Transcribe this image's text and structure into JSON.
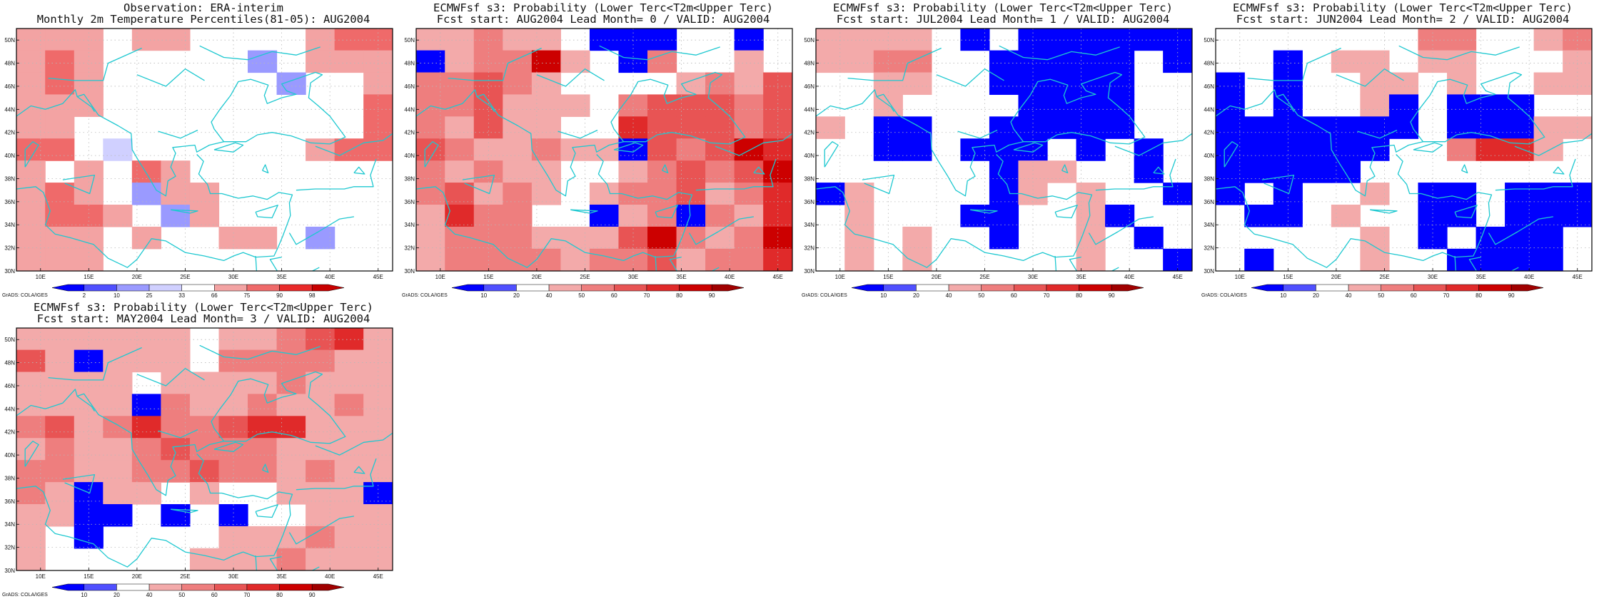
{
  "page": {
    "background": "#ffffff"
  },
  "map_style": {
    "coast_color": "#1ec8d0",
    "grid_color": "#b8b8b8",
    "frame_color": "#000000"
  },
  "palettes": {
    "obs": {
      "labels": [
        "2",
        "10",
        "25",
        "33",
        "66",
        "75",
        "90",
        "98"
      ],
      "colors": [
        "#0000ff",
        "#5050ff",
        "#9a9aff",
        "#d0d0ff",
        "#ffffff",
        "#f3a3a3",
        "#ef6a6a",
        "#e92a2a",
        "#c80000"
      ]
    },
    "prob": {
      "labels": [
        "10",
        "20",
        "40",
        "50",
        "60",
        "70",
        "80",
        "90"
      ],
      "colors": [
        "#0000ff",
        "#5050ff",
        "#ffffff",
        "#f3aaaa",
        "#ee7e7e",
        "#e85454",
        "#e02a2a",
        "#cc0000",
        "#a00000"
      ]
    }
  },
  "chart_data": [
    {
      "type": "heatmap",
      "title_line1": "Observation: ERA-interim",
      "title_line2": "Monthly 2m Temperature Percentiles(81-05): AUG2004",
      "palette": "obs",
      "credit": "GrADS: COLA/IGES",
      "x_ticks": [
        "10E",
        "15E",
        "20E",
        "25E",
        "30E",
        "35E",
        "40E",
        "45E"
      ],
      "y_ticks": [
        "30N",
        "32N",
        "34N",
        "36N",
        "38N",
        "40N",
        "42N",
        "44N",
        "46N",
        "48N",
        "50N"
      ],
      "lon_range": [
        7.5,
        46.5
      ],
      "lat_range": [
        30,
        51
      ],
      "cells": [
        [
          5,
          5,
          5,
          4,
          5,
          5,
          4,
          4,
          4,
          4,
          5,
          6,
          6
        ],
        [
          5,
          6,
          5,
          4,
          4,
          4,
          4,
          4,
          2,
          4,
          5,
          5,
          5
        ],
        [
          5,
          6,
          5,
          4,
          4,
          4,
          4,
          4,
          4,
          2,
          4,
          4,
          5
        ],
        [
          5,
          5,
          5,
          4,
          4,
          4,
          4,
          4,
          4,
          4,
          4,
          4,
          6
        ],
        [
          5,
          5,
          4,
          4,
          4,
          4,
          4,
          4,
          4,
          4,
          4,
          4,
          6
        ],
        [
          6,
          6,
          4,
          3,
          4,
          4,
          4,
          4,
          4,
          4,
          5,
          6,
          6
        ],
        [
          5,
          4,
          5,
          4,
          6,
          5,
          4,
          4,
          4,
          4,
          4,
          4,
          4
        ],
        [
          5,
          6,
          5,
          4,
          2,
          5,
          5,
          4,
          4,
          4,
          4,
          4,
          4
        ],
        [
          5,
          6,
          6,
          5,
          4,
          2,
          5,
          4,
          4,
          4,
          4,
          4,
          4
        ],
        [
          5,
          5,
          5,
          4,
          5,
          4,
          4,
          5,
          5,
          4,
          2,
          4,
          4
        ],
        [
          5,
          5,
          5,
          4,
          4,
          4,
          4,
          4,
          4,
          4,
          4,
          4,
          4
        ]
      ]
    },
    {
      "type": "heatmap",
      "title_line1": "ECMWFsf s3: Probability (Lower Terc<T2m<Upper Terc)",
      "title_line2": "Fcst start: AUG2004  Lead Month= 0 / VALID: AUG2004",
      "palette": "prob",
      "credit": "GrADS: COLA/IGES",
      "x_ticks": [
        "10E",
        "15E",
        "20E",
        "25E",
        "30E",
        "35E",
        "40E",
        "45E"
      ],
      "y_ticks": [
        "30N",
        "32N",
        "34N",
        "36N",
        "38N",
        "40N",
        "42N",
        "44N",
        "46N",
        "48N",
        "50N"
      ],
      "lon_range": [
        7.5,
        46.5
      ],
      "lat_range": [
        30,
        51
      ],
      "cells": [
        [
          3,
          3,
          4,
          3,
          3,
          2,
          0,
          0,
          0,
          2,
          2,
          0,
          2
        ],
        [
          0,
          3,
          4,
          4,
          7,
          3,
          2,
          0,
          4,
          2,
          2,
          3,
          2
        ],
        [
          4,
          4,
          5,
          4,
          3,
          2,
          2,
          2,
          2,
          3,
          4,
          3,
          5
        ],
        [
          4,
          4,
          5,
          3,
          3,
          3,
          2,
          4,
          5,
          5,
          5,
          4,
          5
        ],
        [
          4,
          3,
          5,
          3,
          3,
          2,
          2,
          6,
          5,
          5,
          5,
          4,
          5
        ],
        [
          5,
          4,
          3,
          3,
          4,
          3,
          3,
          0,
          5,
          4,
          5,
          7,
          6
        ],
        [
          4,
          3,
          4,
          3,
          3,
          2,
          2,
          3,
          4,
          5,
          4,
          5,
          7
        ],
        [
          4,
          5,
          3,
          4,
          3,
          2,
          3,
          4,
          4,
          5,
          3,
          4,
          6
        ],
        [
          3,
          6,
          4,
          4,
          2,
          2,
          0,
          3,
          4,
          0,
          4,
          3,
          6
        ],
        [
          3,
          4,
          4,
          4,
          3,
          3,
          3,
          5,
          7,
          4,
          3,
          4,
          7
        ],
        [
          3,
          4,
          4,
          4,
          4,
          3,
          4,
          4,
          5,
          3,
          4,
          4,
          6
        ]
      ]
    },
    {
      "type": "heatmap",
      "title_line1": "ECMWFsf s3: Probability (Lower Terc<T2m<Upper Terc)",
      "title_line2": "Fcst start: JUL2004  Lead Month= 1 / VALID: AUG2004",
      "palette": "prob",
      "credit": "GrADS: COLA/IGES",
      "x_ticks": [
        "10E",
        "15E",
        "20E",
        "25E",
        "30E",
        "35E",
        "40E",
        "45E"
      ],
      "y_ticks": [
        "30N",
        "32N",
        "34N",
        "36N",
        "38N",
        "40N",
        "42N",
        "44N",
        "46N",
        "48N",
        "50N"
      ],
      "lon_range": [
        7.5,
        46.5
      ],
      "lat_range": [
        30,
        51
      ],
      "cells": [
        [
          3,
          3,
          3,
          3,
          2,
          0,
          2,
          0,
          0,
          0,
          0,
          0,
          0
        ],
        [
          3,
          3,
          4,
          4,
          2,
          2,
          0,
          0,
          0,
          0,
          0,
          2,
          0
        ],
        [
          2,
          2,
          3,
          3,
          2,
          2,
          0,
          0,
          0,
          0,
          0,
          2,
          2
        ],
        [
          2,
          2,
          3,
          2,
          2,
          2,
          2,
          0,
          0,
          0,
          0,
          2,
          2
        ],
        [
          3,
          2,
          0,
          0,
          2,
          2,
          0,
          0,
          0,
          0,
          0,
          2,
          2
        ],
        [
          2,
          2,
          0,
          0,
          2,
          0,
          0,
          0,
          2,
          0,
          2,
          0,
          2
        ],
        [
          2,
          2,
          2,
          2,
          2,
          2,
          0,
          3,
          3,
          2,
          2,
          0,
          2
        ],
        [
          0,
          3,
          2,
          2,
          2,
          2,
          0,
          3,
          2,
          3,
          2,
          2,
          0
        ],
        [
          2,
          3,
          2,
          2,
          2,
          0,
          0,
          2,
          2,
          3,
          0,
          2,
          2
        ],
        [
          2,
          3,
          2,
          3,
          2,
          2,
          0,
          2,
          2,
          3,
          2,
          0,
          2
        ],
        [
          2,
          3,
          2,
          3,
          2,
          2,
          2,
          2,
          2,
          3,
          2,
          2,
          0
        ]
      ]
    },
    {
      "type": "heatmap",
      "title_line1": "ECMWFsf s3: Probability (Lower Terc<T2m<Upper Terc)",
      "title_line2": "Fcst start: JUN2004  Lead Month= 2 / VALID: AUG2004",
      "palette": "prob",
      "credit": "GrADS: COLA/IGES",
      "x_ticks": [
        "10E",
        "15E",
        "20E",
        "25E",
        "30E",
        "35E",
        "40E",
        "45E"
      ],
      "y_ticks": [
        "30N",
        "32N",
        "34N",
        "36N",
        "38N",
        "40N",
        "42N",
        "44N",
        "46N",
        "48N",
        "50N"
      ],
      "lon_range": [
        7.5,
        46.5
      ],
      "lat_range": [
        30,
        51
      ],
      "cells": [
        [
          2,
          2,
          2,
          2,
          2,
          2,
          2,
          4,
          4,
          2,
          2,
          3,
          4
        ],
        [
          2,
          2,
          0,
          2,
          3,
          3,
          2,
          3,
          3,
          2,
          2,
          2,
          3
        ],
        [
          0,
          2,
          0,
          2,
          2,
          3,
          3,
          2,
          3,
          2,
          2,
          3,
          3
        ],
        [
          0,
          2,
          0,
          2,
          2,
          3,
          0,
          2,
          0,
          0,
          0,
          2,
          2
        ],
        [
          0,
          0,
          0,
          0,
          0,
          0,
          0,
          2,
          0,
          0,
          0,
          3,
          3
        ],
        [
          0,
          0,
          0,
          0,
          0,
          0,
          2,
          2,
          4,
          6,
          6,
          3,
          2
        ],
        [
          0,
          0,
          0,
          0,
          0,
          2,
          2,
          2,
          2,
          2,
          2,
          2,
          2
        ],
        [
          0,
          2,
          0,
          2,
          2,
          3,
          2,
          0,
          0,
          2,
          0,
          0,
          0
        ],
        [
          2,
          0,
          0,
          2,
          3,
          2,
          2,
          0,
          0,
          2,
          0,
          0,
          0
        ],
        [
          2,
          2,
          2,
          2,
          2,
          3,
          2,
          0,
          2,
          0,
          0,
          0,
          2
        ],
        [
          2,
          0,
          2,
          2,
          2,
          3,
          2,
          2,
          0,
          0,
          0,
          0,
          2
        ]
      ]
    },
    {
      "type": "heatmap",
      "title_line1": "ECMWFsf s3: Probability (Lower Terc<T2m<Upper Terc)",
      "title_line2": "Fcst start: MAY2004  Lead Month= 3 / VALID: AUG2004",
      "palette": "prob",
      "credit": "GrADS: COLA/IGES",
      "x_ticks": [
        "10E",
        "15E",
        "20E",
        "25E",
        "30E",
        "35E",
        "40E",
        "45E"
      ],
      "y_ticks": [
        "30N",
        "32N",
        "34N",
        "36N",
        "38N",
        "40N",
        "42N",
        "44N",
        "46N",
        "48N",
        "50N"
      ],
      "lon_range": [
        7.5,
        46.5
      ],
      "lat_range": [
        30,
        51
      ],
      "cells": [
        [
          3,
          3,
          3,
          3,
          3,
          3,
          2,
          3,
          3,
          4,
          5,
          6,
          3
        ],
        [
          5,
          3,
          0,
          3,
          3,
          3,
          2,
          4,
          4,
          4,
          4,
          3,
          3
        ],
        [
          3,
          3,
          3,
          3,
          2,
          3,
          3,
          3,
          3,
          4,
          3,
          3,
          3
        ],
        [
          3,
          3,
          3,
          3,
          0,
          4,
          3,
          3,
          4,
          3,
          3,
          4,
          3
        ],
        [
          4,
          5,
          3,
          4,
          6,
          4,
          4,
          5,
          6,
          6,
          3,
          3,
          3
        ],
        [
          3,
          4,
          3,
          3,
          4,
          5,
          4,
          4,
          4,
          3,
          3,
          3,
          3
        ],
        [
          4,
          4,
          3,
          3,
          4,
          4,
          5,
          4,
          4,
          3,
          4,
          3,
          3
        ],
        [
          4,
          3,
          0,
          3,
          3,
          2,
          3,
          2,
          2,
          3,
          3,
          3,
          0
        ],
        [
          3,
          3,
          0,
          0,
          2,
          0,
          2,
          0,
          2,
          2,
          3,
          3,
          3
        ],
        [
          3,
          2,
          0,
          2,
          2,
          2,
          2,
          3,
          3,
          3,
          4,
          3,
          3
        ],
        [
          3,
          2,
          2,
          2,
          2,
          2,
          3,
          3,
          3,
          4,
          3,
          3,
          3
        ]
      ]
    }
  ]
}
